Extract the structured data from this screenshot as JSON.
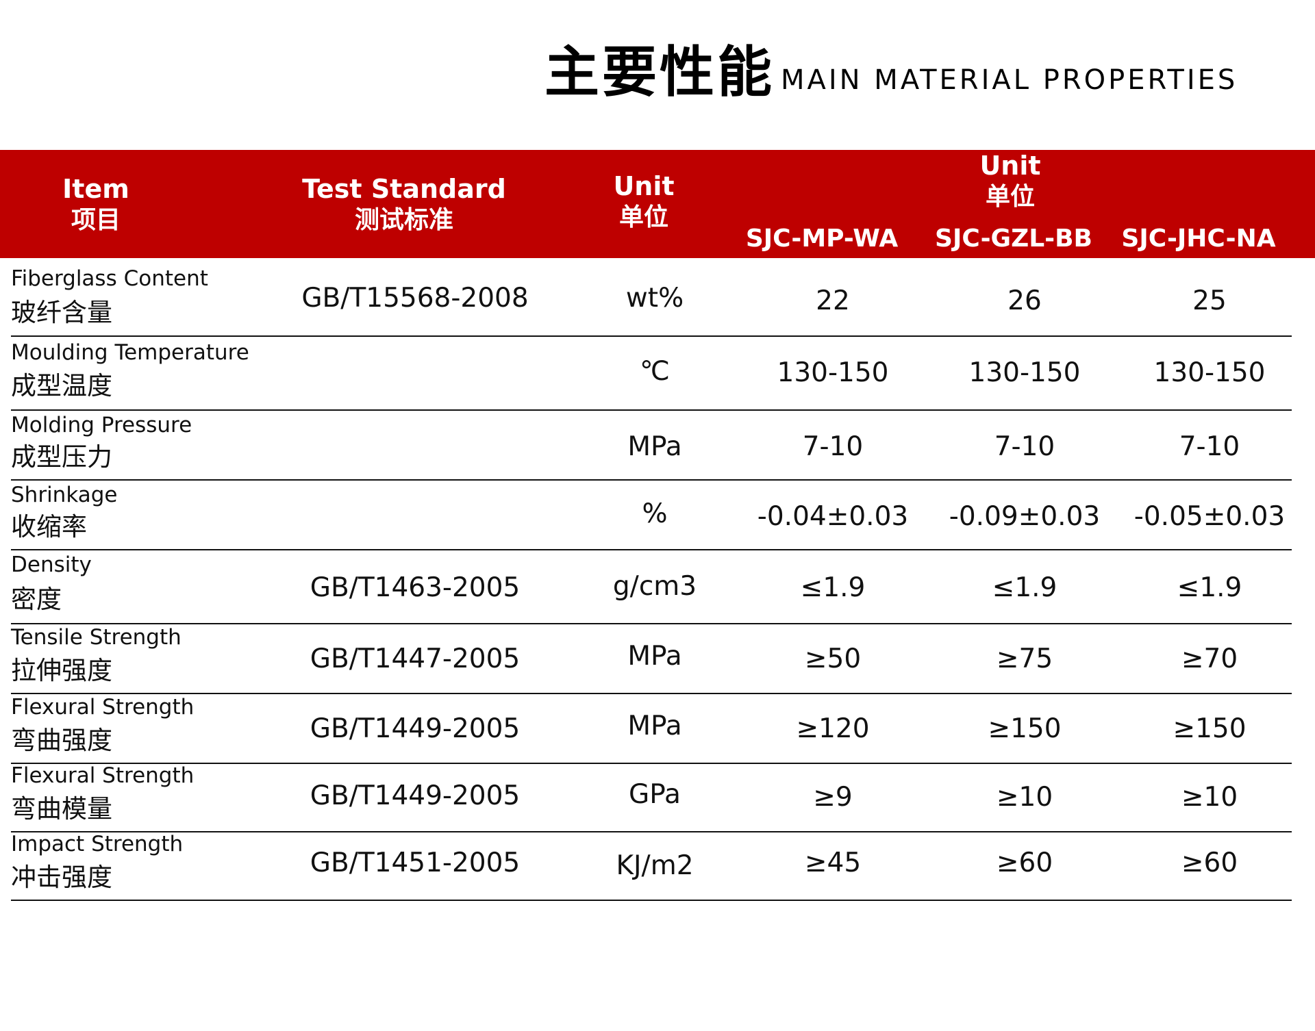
{
  "title": {
    "cn": "主要性能",
    "en": "MAIN MATERIAL PROPERTIES"
  },
  "header": {
    "item": {
      "en": "Item",
      "cn": "项目"
    },
    "standard": {
      "en": "Test  Standard",
      "cn": "测试标准"
    },
    "unit": {
      "en": "Unit",
      "cn": "单位"
    },
    "group": {
      "en": "Unit",
      "cn": "单位"
    },
    "models": [
      "SJC-MP-WA",
      "SJC-GZL-BB",
      "SJC-JHC-NA"
    ]
  },
  "rows": [
    {
      "en": "Fiberglass Content",
      "cn": "玻纤含量",
      "standard": "GB/T15568-2008",
      "unit": "wt%",
      "values": [
        "22",
        "26",
        "25"
      ]
    },
    {
      "en": "Moulding Temperature",
      "cn": "成型温度",
      "standard": "",
      "unit": "℃",
      "values": [
        "130-150",
        "130-150",
        "130-150"
      ]
    },
    {
      "en": "Molding Pressure",
      "cn": "成型压力",
      "standard": "",
      "unit": "MPa",
      "values": [
        "7-10",
        "7-10",
        "7-10"
      ]
    },
    {
      "en": "Shrinkage",
      "cn": "收缩率",
      "standard": "",
      "unit": "%",
      "values": [
        "-0.04±0.03",
        "-0.09±0.03",
        "-0.05±0.03"
      ]
    },
    {
      "en": "Density",
      "cn": "密度",
      "standard": "GB/T1463-2005",
      "unit": "g/cm3",
      "values": [
        "≤1.9",
        "≤1.9",
        "≤1.9"
      ]
    },
    {
      "en": "Tensile Strength",
      "cn": "拉伸强度",
      "standard": "GB/T1447-2005",
      "unit": "MPa",
      "values": [
        "≥50",
        "≥75",
        "≥70"
      ]
    },
    {
      "en": "Flexural Strength",
      "cn": "弯曲强度",
      "standard": "GB/T1449-2005",
      "unit": "MPa",
      "values": [
        "≥120",
        "≥150",
        "≥150"
      ]
    },
    {
      "en": "Flexural Strength",
      "cn": "弯曲模量",
      "standard": "GB/T1449-2005",
      "unit": "GPa",
      "values": [
        "≥9",
        "≥10",
        "≥10"
      ]
    },
    {
      "en": "Impact Strength",
      "cn": "冲击强度",
      "standard": "GB/T1451-2005",
      "unit": "KJ/m2",
      "values": [
        "≥45",
        "≥60",
        "≥60"
      ]
    }
  ]
}
